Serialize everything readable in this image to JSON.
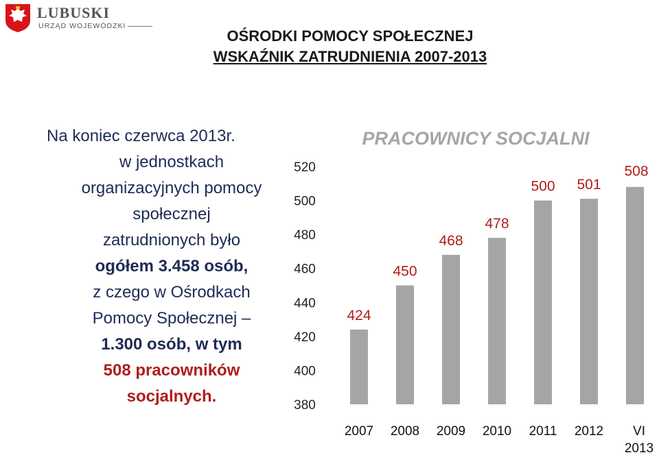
{
  "logo": {
    "name": "LUBUSKI",
    "subtitle": "URZĄD WOJEWÓDZKI"
  },
  "heading": {
    "line1": "OŚRODKI POMOCY SPOŁECZNEJ",
    "line2": "WSKAŹNIK ZATRUDNIENIA 2007-2013"
  },
  "text_block": {
    "line1": "Na koniec czerwca 2013r.",
    "line2": "w jednostkach",
    "line3": "organizacyjnych pomocy",
    "line4": "społecznej",
    "line5": "zatrudnionych było",
    "line6": "ogółem 3.458 osób,",
    "line7": "z czego w Ośrodkach",
    "line8": "Pomocy Społecznej –",
    "line9": "1.300 osób, w tym",
    "line10": "508 pracowników",
    "line11": "socjalnych."
  },
  "colors": {
    "bar": "#a5a5a5",
    "label": "#b01d1d",
    "text": "#1f2b55"
  },
  "chart_data": {
    "type": "bar",
    "title": "PRACOWNICY SOCJALNI",
    "categories": [
      "2007",
      "2008",
      "2009",
      "2010",
      "2011",
      "2012",
      "VI 2013"
    ],
    "values": [
      424,
      450,
      468,
      478,
      500,
      501,
      508
    ],
    "ylim": [
      380,
      520
    ],
    "yticks": [
      "380",
      "400",
      "420",
      "440",
      "460",
      "480",
      "500",
      "520"
    ],
    "grid": false,
    "legend": "none"
  }
}
